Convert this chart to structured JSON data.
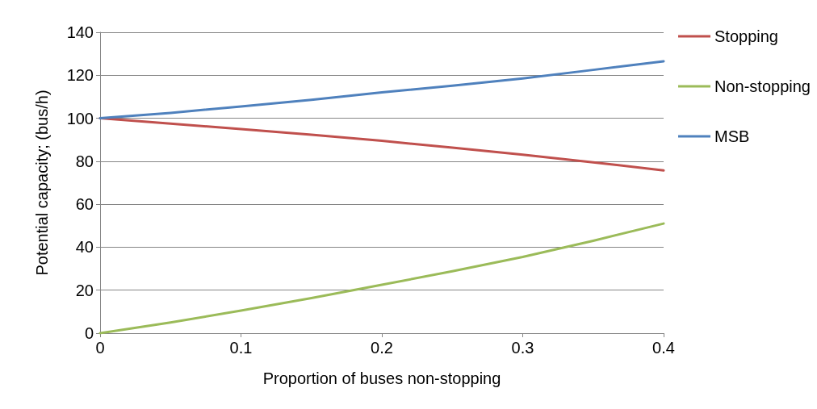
{
  "chart_data": {
    "type": "line",
    "xlabel": "Proportion of buses non-stopping",
    "ylabel": "Potential capacity; (bus/h)",
    "x": [
      0,
      0.05,
      0.1,
      0.15,
      0.2,
      0.25,
      0.3,
      0.35,
      0.4
    ],
    "series": [
      {
        "name": "Stopping",
        "color": "#c0504d",
        "values": [
          100,
          97.5,
          95,
          92.3,
          89.5,
          86.3,
          83,
          79.5,
          75.7
        ]
      },
      {
        "name": "Non-stopping",
        "color": "#9bbb59",
        "values": [
          0,
          5,
          10.5,
          16.3,
          22.5,
          28.8,
          35.5,
          43,
          51
        ]
      },
      {
        "name": "MSB",
        "color": "#4f81bd",
        "values": [
          100,
          102.5,
          105.5,
          108.6,
          112,
          115.1,
          118.5,
          122.5,
          126.5
        ]
      }
    ],
    "xlim": [
      0,
      0.4
    ],
    "xticks": [
      0,
      0.1,
      0.2,
      0.3,
      0.4
    ],
    "ylim": [
      0,
      140
    ],
    "yticks": [
      0,
      20,
      40,
      60,
      80,
      100,
      120,
      140
    ],
    "grid": "y",
    "legend": "top right",
    "marker": "none"
  }
}
